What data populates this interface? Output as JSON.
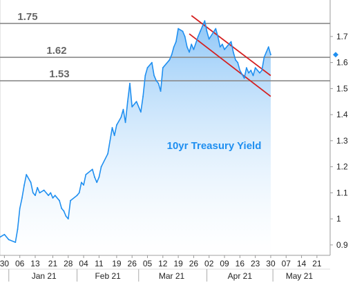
{
  "chart_data": {
    "type": "area",
    "title": "",
    "xlabel": "",
    "ylabel": "",
    "ylim": [
      0.86,
      1.84
    ],
    "y_ticks": [
      0.9,
      1.0,
      1.1,
      1.2,
      1.3,
      1.4,
      1.5,
      1.6,
      1.7
    ],
    "y_tick_labels": [
      "0.9",
      "1",
      "1.1",
      "1.2",
      "1.3",
      "1.4",
      "1.5",
      "1.6",
      "1.7"
    ],
    "x_range": [
      "2020-12-28",
      "2021-05-27"
    ],
    "x_ticks": [
      {
        "date": "2020-12-30",
        "label": "30"
      },
      {
        "date": "2021-01-06",
        "label": "06"
      },
      {
        "date": "2021-01-13",
        "label": "13"
      },
      {
        "date": "2021-01-21",
        "label": "21"
      },
      {
        "date": "2021-01-28",
        "label": "28"
      },
      {
        "date": "2021-02-04",
        "label": "04"
      },
      {
        "date": "2021-02-11",
        "label": "11"
      },
      {
        "date": "2021-02-19",
        "label": "19"
      },
      {
        "date": "2021-02-26",
        "label": "26"
      },
      {
        "date": "2021-03-05",
        "label": "05"
      },
      {
        "date": "2021-03-12",
        "label": "12"
      },
      {
        "date": "2021-03-19",
        "label": "19"
      },
      {
        "date": "2021-03-26",
        "label": "26"
      },
      {
        "date": "2021-04-02",
        "label": "02"
      },
      {
        "date": "2021-04-09",
        "label": "09"
      },
      {
        "date": "2021-04-16",
        "label": "16"
      },
      {
        "date": "2021-04-23",
        "label": "23"
      },
      {
        "date": "2021-04-30",
        "label": "30"
      },
      {
        "date": "2021-05-07",
        "label": "07"
      },
      {
        "date": "2021-05-14",
        "label": "14"
      },
      {
        "date": "2021-05-21",
        "label": "21"
      }
    ],
    "months": [
      {
        "label": "Jan 21",
        "center": "2021-01-17"
      },
      {
        "label": "Feb 21",
        "center": "2021-02-15"
      },
      {
        "label": "Mar 21",
        "center": "2021-03-16"
      },
      {
        "label": "Apr 21",
        "center": "2021-04-16"
      },
      {
        "label": "May 21",
        "center": "2021-05-13"
      }
    ],
    "month_dividers": [
      "2021-01-01",
      "2021-02-01",
      "2021-03-01",
      "2021-04-01",
      "2021-05-01"
    ],
    "annotation": "10yr Treasury Yield",
    "levels": [
      {
        "value": 1.75,
        "label": "1.75"
      },
      {
        "value": 1.62,
        "label": "1.62"
      },
      {
        "value": 1.53,
        "label": "1.53"
      }
    ],
    "trendlines": [
      {
        "from": {
          "date": "2021-03-25",
          "value": 1.78
        },
        "to": {
          "date": "2021-04-30",
          "value": 1.55
        }
      },
      {
        "from": {
          "date": "2021-03-24",
          "value": 1.71
        },
        "to": {
          "date": "2021-04-30",
          "value": 1.47
        }
      }
    ],
    "last_value": 1.63,
    "series": [
      {
        "x": [
          "2020-12-28",
          "2020-12-30",
          "2021-01-01",
          "2021-01-04",
          "2021-01-05",
          "2021-01-06",
          "2021-01-07",
          "2021-01-08",
          "2021-01-09",
          "2021-01-11",
          "2021-01-12",
          "2021-01-13",
          "2021-01-14",
          "2021-01-15",
          "2021-01-17",
          "2021-01-19",
          "2021-01-20",
          "2021-01-21",
          "2021-01-22",
          "2021-01-24",
          "2021-01-25",
          "2021-01-26",
          "2021-01-27",
          "2021-01-28",
          "2021-01-29",
          "2021-02-01",
          "2021-02-02",
          "2021-02-03",
          "2021-02-04",
          "2021-02-05",
          "2021-02-08",
          "2021-02-09",
          "2021-02-10",
          "2021-02-11",
          "2021-02-12",
          "2021-02-15",
          "2021-02-16",
          "2021-02-17",
          "2021-02-18",
          "2021-02-19",
          "2021-02-21",
          "2021-02-22",
          "2021-02-23",
          "2021-02-24",
          "2021-02-25",
          "2021-02-26",
          "2021-02-28",
          "2021-03-02",
          "2021-03-03",
          "2021-03-04",
          "2021-03-05",
          "2021-03-07",
          "2021-03-08",
          "2021-03-09",
          "2021-03-10",
          "2021-03-11",
          "2021-03-12",
          "2021-03-15",
          "2021-03-16",
          "2021-03-17",
          "2021-03-18",
          "2021-03-19",
          "2021-03-21",
          "2021-03-22",
          "2021-03-23",
          "2021-03-24",
          "2021-03-25",
          "2021-03-26",
          "2021-03-28",
          "2021-03-29",
          "2021-03-30",
          "2021-03-31",
          "2021-04-01",
          "2021-04-02",
          "2021-04-05",
          "2021-04-06",
          "2021-04-07",
          "2021-04-08",
          "2021-04-09",
          "2021-04-11",
          "2021-04-12",
          "2021-04-13",
          "2021-04-14",
          "2021-04-15",
          "2021-04-16",
          "2021-04-18",
          "2021-04-19",
          "2021-04-20",
          "2021-04-21",
          "2021-04-22",
          "2021-04-23",
          "2021-04-25",
          "2021-04-26",
          "2021-04-27",
          "2021-04-28",
          "2021-04-29",
          "2021-04-30"
        ],
        "values": [
          0.93,
          0.94,
          0.92,
          0.91,
          0.96,
          1.04,
          1.08,
          1.13,
          1.17,
          1.14,
          1.1,
          1.09,
          1.12,
          1.1,
          1.11,
          1.09,
          1.1,
          1.08,
          1.09,
          1.07,
          1.04,
          1.03,
          1.01,
          1.0,
          1.07,
          1.09,
          1.1,
          1.14,
          1.13,
          1.17,
          1.19,
          1.16,
          1.14,
          1.16,
          1.2,
          1.25,
          1.3,
          1.35,
          1.32,
          1.36,
          1.39,
          1.42,
          1.37,
          1.45,
          1.52,
          1.43,
          1.45,
          1.41,
          1.47,
          1.55,
          1.58,
          1.6,
          1.55,
          1.53,
          1.52,
          1.49,
          1.58,
          1.61,
          1.63,
          1.66,
          1.68,
          1.73,
          1.72,
          1.7,
          1.66,
          1.64,
          1.67,
          1.65,
          1.7,
          1.72,
          1.74,
          1.76,
          1.72,
          1.69,
          1.73,
          1.7,
          1.66,
          1.67,
          1.65,
          1.67,
          1.68,
          1.64,
          1.61,
          1.6,
          1.57,
          1.54,
          1.58,
          1.56,
          1.57,
          1.55,
          1.58,
          1.56,
          1.57,
          1.62,
          1.64,
          1.66,
          1.63
        ]
      }
    ]
  },
  "colors": {
    "line": "#1f8ff0",
    "fill_top": "#1f8ff0",
    "fill_bottom": "#ffffff",
    "level": "#8a8a8a",
    "trend": "#d42020",
    "annotation": "#1f8ff0",
    "marker": "#1f8ff0"
  }
}
